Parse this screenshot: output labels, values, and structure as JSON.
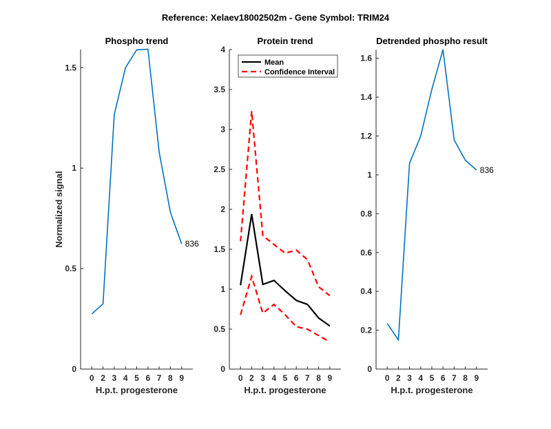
{
  "figure_title": "Reference:  Xelaev18002502m - Gene Symbol:  TRIM24",
  "chart_data": [
    {
      "type": "line",
      "title": "Phospho trend",
      "xlabel": "H.p.t. progesterone",
      "ylabel": "Normalized signal",
      "categories": [
        "0",
        "2",
        "3",
        "4",
        "5",
        "6",
        "7",
        "8",
        "9"
      ],
      "ylim": [
        0,
        1.59
      ],
      "yticks": [
        0,
        0.5,
        1,
        1.5
      ],
      "ytick_labels": [
        "0",
        "0.5",
        "1",
        "1.5"
      ],
      "series": [
        {
          "name": "836",
          "color": "#0072bd",
          "style": "solid",
          "values": [
            0.274,
            0.325,
            1.267,
            1.5,
            1.589,
            1.592,
            1.08,
            0.78,
            0.623
          ]
        }
      ],
      "annotation": "836"
    },
    {
      "type": "line",
      "title": "Protein trend",
      "xlabel": "H.p.t. progesterone",
      "ylabel": "",
      "categories": [
        "0",
        "2",
        "3",
        "4",
        "5",
        "6",
        "7",
        "8",
        "9"
      ],
      "ylim": [
        0,
        4
      ],
      "yticks": [
        0,
        0.5,
        1,
        1.5,
        2,
        2.5,
        3,
        3.5,
        4
      ],
      "ytick_labels": [
        "0",
        "0.5",
        "1",
        "1.5",
        "2",
        "2.5",
        "3",
        "3.5",
        "4"
      ],
      "legend": {
        "placement": "top-left",
        "entries": [
          "Mean",
          "Confidence Interval"
        ]
      },
      "series": [
        {
          "name": "Mean",
          "color": "#000000",
          "style": "solid",
          "values": [
            1.05,
            1.94,
            1.06,
            1.11,
            0.98,
            0.86,
            0.81,
            0.64,
            0.54
          ]
        },
        {
          "name": "Confidence Interval upper",
          "color": "#ff0000",
          "style": "dashed",
          "values": [
            1.6,
            3.23,
            1.67,
            1.56,
            1.45,
            1.49,
            1.37,
            1.03,
            0.92
          ]
        },
        {
          "name": "Confidence Interval lower",
          "color": "#ff0000",
          "style": "dashed",
          "values": [
            0.68,
            1.16,
            0.7,
            0.81,
            0.68,
            0.53,
            0.5,
            0.42,
            0.34
          ]
        }
      ]
    },
    {
      "type": "line",
      "title": "Detrended phospho result",
      "xlabel": "H.p.t. progesterone",
      "ylabel": "",
      "categories": [
        "0",
        "2",
        "3",
        "4",
        "5",
        "6",
        "7",
        "8",
        "9"
      ],
      "ylim": [
        0,
        1.645
      ],
      "yticks": [
        0,
        0.2,
        0.4,
        0.6,
        0.8,
        1,
        1.2,
        1.4,
        1.6
      ],
      "ytick_labels": [
        "0",
        "0.2",
        "0.4",
        "0.6",
        "0.8",
        "1",
        "1.2",
        "1.4",
        "1.6"
      ],
      "series": [
        {
          "name": "836",
          "color": "#0072bd",
          "style": "solid",
          "values": [
            0.235,
            0.15,
            1.06,
            1.2,
            1.44,
            1.645,
            1.18,
            1.075,
            1.025
          ]
        }
      ],
      "annotation": "836"
    }
  ]
}
